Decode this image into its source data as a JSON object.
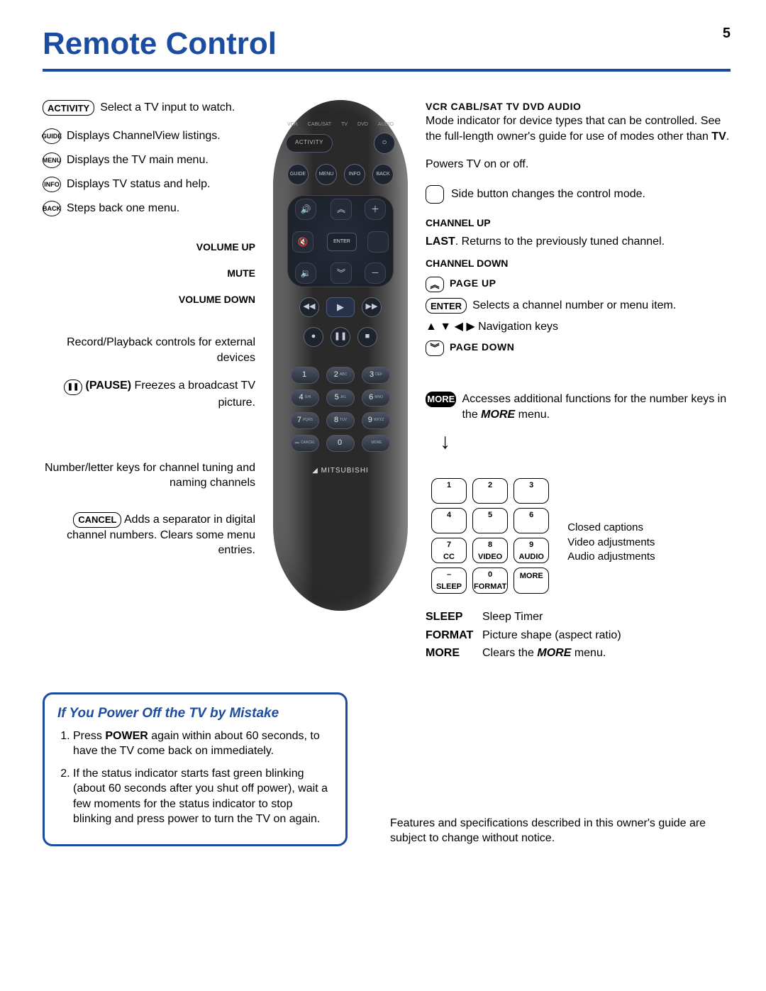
{
  "page_number": "5",
  "title": "Remote Control",
  "colors": {
    "accent": "#1b4ca0"
  },
  "left": {
    "activity": {
      "btn": "ACTIVITY",
      "text": "Select a TV input to watch."
    },
    "guide": {
      "btn": "GUIDE",
      "text": "Displays ChannelView listings."
    },
    "menu": {
      "btn": "MENU",
      "text": "Displays the TV main menu."
    },
    "info": {
      "btn": "INFO",
      "text": "Displays TV status and help."
    },
    "back": {
      "btn": "BACK",
      "text": "Steps back one menu."
    },
    "volup": "VOLUME UP",
    "mute": "MUTE",
    "voldown": "VOLUME DOWN",
    "recplay": "Record/Playback controls for external devices",
    "pause": {
      "btn": "❚❚",
      "label": "(PAUSE)",
      "text": "Freezes a broadcast TV picture."
    },
    "numkeys": "Number/letter keys for channel tuning and naming channels",
    "cancel": {
      "btn": "CANCEL",
      "text": "Adds a separator in digital channel numbers.  Clears some menu entries."
    }
  },
  "right": {
    "modes_hdr": "VCR  CABL/SAT  TV  DVD  AUDIO",
    "modes_text": "Mode indicator for device types that can be controlled.  See the full-length owner's guide for use of modes other than ",
    "modes_bold": "TV",
    "power": "Powers TV on or off.",
    "side": "Side button changes the control mode.",
    "chup": "CHANNEL UP",
    "last": {
      "label": "LAST",
      "text": ".  Returns to the previously tuned channel."
    },
    "chdown": "CHANNEL DOWN",
    "pageup": "PAGE UP",
    "enter": {
      "btn": "ENTER",
      "text": "Selects a channel number or menu item."
    },
    "navkeys": "▲ ▼ ◀ ▶  Navigation keys",
    "pagedown": "PAGE DOWN",
    "more": {
      "btn": "MORE",
      "text1": "Accesses additional functions for the number keys in the ",
      "bold": "MORE",
      "text2": " menu."
    },
    "keypad": [
      [
        "1",
        "",
        "2",
        "",
        "3",
        ""
      ],
      [
        "4",
        "",
        "5",
        "",
        "6",
        ""
      ],
      [
        "7",
        "CC",
        "8",
        "VIDEO",
        "9",
        "AUDIO"
      ],
      [
        "–",
        "SLEEP",
        "0",
        "FORMAT",
        "",
        "MORE"
      ]
    ],
    "keypad_side": [
      "Closed captions",
      "Video adjustments",
      "Audio adjustments"
    ],
    "defs": {
      "sleep": {
        "k": "SLEEP",
        "v": "Sleep Timer"
      },
      "format": {
        "k": "FORMAT",
        "v": "Picture shape (aspect ratio)"
      },
      "more": {
        "k": "MORE",
        "v1": "Clears the ",
        "b": "MORE",
        "v2": " menu."
      }
    }
  },
  "remote": {
    "modes": [
      "VCR",
      "CABL/SAT",
      "TV",
      "DVD",
      "AUDIO"
    ],
    "activity": "ACTIVITY",
    "row4": [
      "GUIDE",
      "MENU",
      "INFO",
      "BACK"
    ],
    "enter": "ENTER",
    "numbers": [
      {
        "n": "1",
        "s": ""
      },
      {
        "n": "2",
        "s": "ABC"
      },
      {
        "n": "3",
        "s": "DEF"
      },
      {
        "n": "4",
        "s": "GHI"
      },
      {
        "n": "5",
        "s": "JKL"
      },
      {
        "n": "6",
        "s": "MNO"
      },
      {
        "n": "7",
        "s": "PQRS"
      },
      {
        "n": "8",
        "s": "TUV"
      },
      {
        "n": "9",
        "s": "WXYZ"
      },
      {
        "n": "–",
        "s": "CANCEL"
      },
      {
        "n": "0",
        "s": ""
      },
      {
        "n": "",
        "s": "MORE"
      }
    ],
    "brand": "MITSUBISHI"
  },
  "callout": {
    "title": "If You Power Off the TV by Mistake",
    "item1a": "Press ",
    "item1b": "POWER",
    "item1c": " again within about 60 seconds, to have the TV come back on immediately.",
    "item2": "If the status indicator starts fast green blinking (about 60 seconds after you shut off power), wait a few moments for the status indicator to stop blinking and press power to turn the TV on again."
  },
  "footnote": "Features and specifications described in this owner's guide are subject to change without notice."
}
